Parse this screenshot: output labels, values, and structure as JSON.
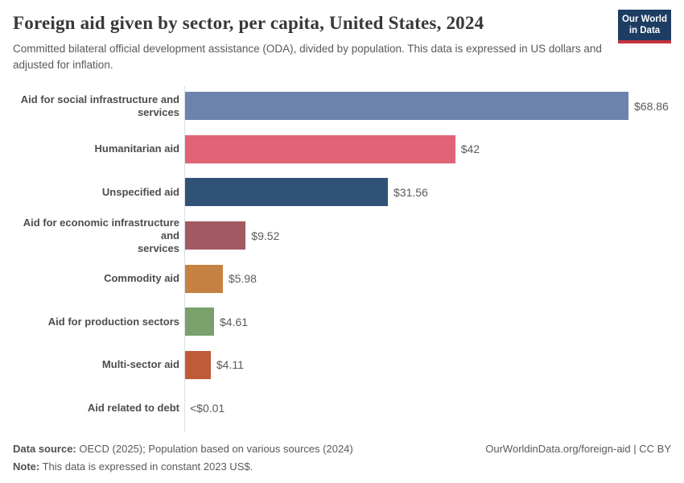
{
  "header": {
    "title": "Foreign aid given by sector, per capita, United States, 2024",
    "subtitle": "Committed bilateral official development assistance (ODA), divided by population. This data is expressed in US dollars and adjusted for inflation.",
    "logo": {
      "line1": "Our World",
      "line2": "in Data",
      "bg_color": "#1d3d63",
      "accent_color": "#c4333f"
    }
  },
  "chart_data": {
    "type": "bar",
    "orientation": "horizontal",
    "title": "Foreign aid given by sector, per capita, United States, 2024",
    "categories": [
      "Aid for social infrastructure and services",
      "Humanitarian aid",
      "Unspecified aid",
      "Aid for economic infrastructure and services",
      "Commodity aid",
      "Aid for production sectors",
      "Multi-sector aid",
      "Aid related to debt"
    ],
    "category_display": [
      "Aid for social infrastructure and\nservices",
      "Humanitarian aid",
      "Unspecified aid",
      "Aid for economic infrastructure and\nservices",
      "Commodity aid",
      "Aid for production sectors",
      "Multi-sector aid",
      "Aid related to debt"
    ],
    "values": [
      68.86,
      42,
      31.56,
      9.52,
      5.98,
      4.61,
      4.11,
      0
    ],
    "value_labels": [
      "$68.86",
      "$42",
      "$31.56",
      "$9.52",
      "$5.98",
      "$4.61",
      "$4.11",
      "<$0.01"
    ],
    "colors": [
      "#6c84ad",
      "#e06376",
      "#2f5276",
      "#a25a62",
      "#c48142",
      "#7aa06c",
      "#c05b3a",
      null
    ],
    "xlim": [
      0,
      68.86
    ],
    "grid": false,
    "legend": "none",
    "axis_color": "#dadfe1"
  },
  "footer": {
    "source_label": "Data source:",
    "source_text": "OECD (2025); Population based on various sources (2024)",
    "note_label": "Note:",
    "note_text": "This data is expressed in constant 2023 US$.",
    "attribution": "OurWorldinData.org/foreign-aid | CC BY"
  }
}
